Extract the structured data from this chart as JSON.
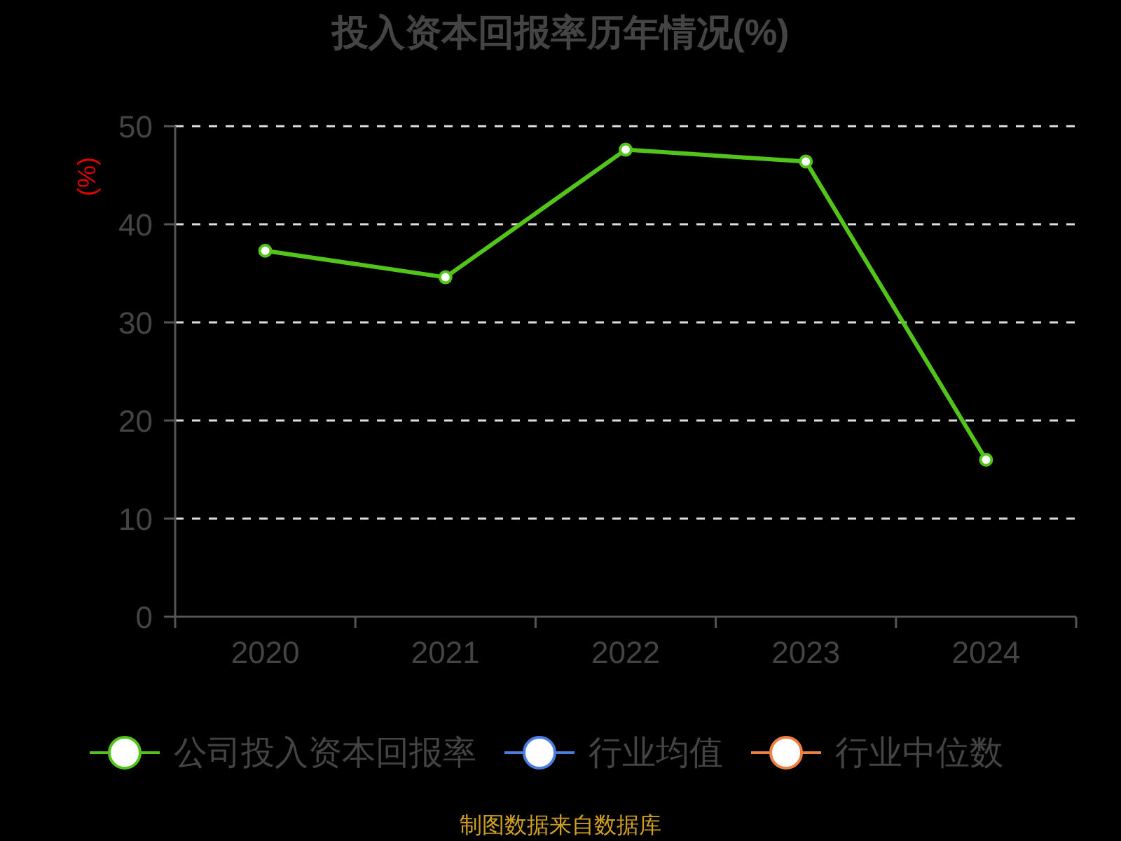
{
  "chart_data": {
    "type": "line",
    "title": "投入资本回报率历年情况(%)",
    "ylabel": "(%)",
    "categories": [
      "2020",
      "2021",
      "2022",
      "2023",
      "2024"
    ],
    "series": [
      {
        "name": "公司投入资本回报率",
        "color": "#52c41a",
        "values": [
          37.3,
          34.6,
          47.6,
          46.4,
          16.0
        ]
      },
      {
        "name": "行业均值",
        "color": "#4a7ee0",
        "values": [
          null,
          null,
          null,
          null,
          null
        ]
      },
      {
        "name": "行业中位数",
        "color": "#f08040",
        "values": [
          null,
          null,
          null,
          null,
          null
        ]
      }
    ],
    "ylim": [
      0,
      50
    ],
    "yticks": [
      0,
      10,
      20,
      30,
      40,
      50
    ],
    "grid": "y",
    "legend": "bottom",
    "marker": "circle",
    "annotations": [
      "制图数据来自数据库"
    ]
  }
}
